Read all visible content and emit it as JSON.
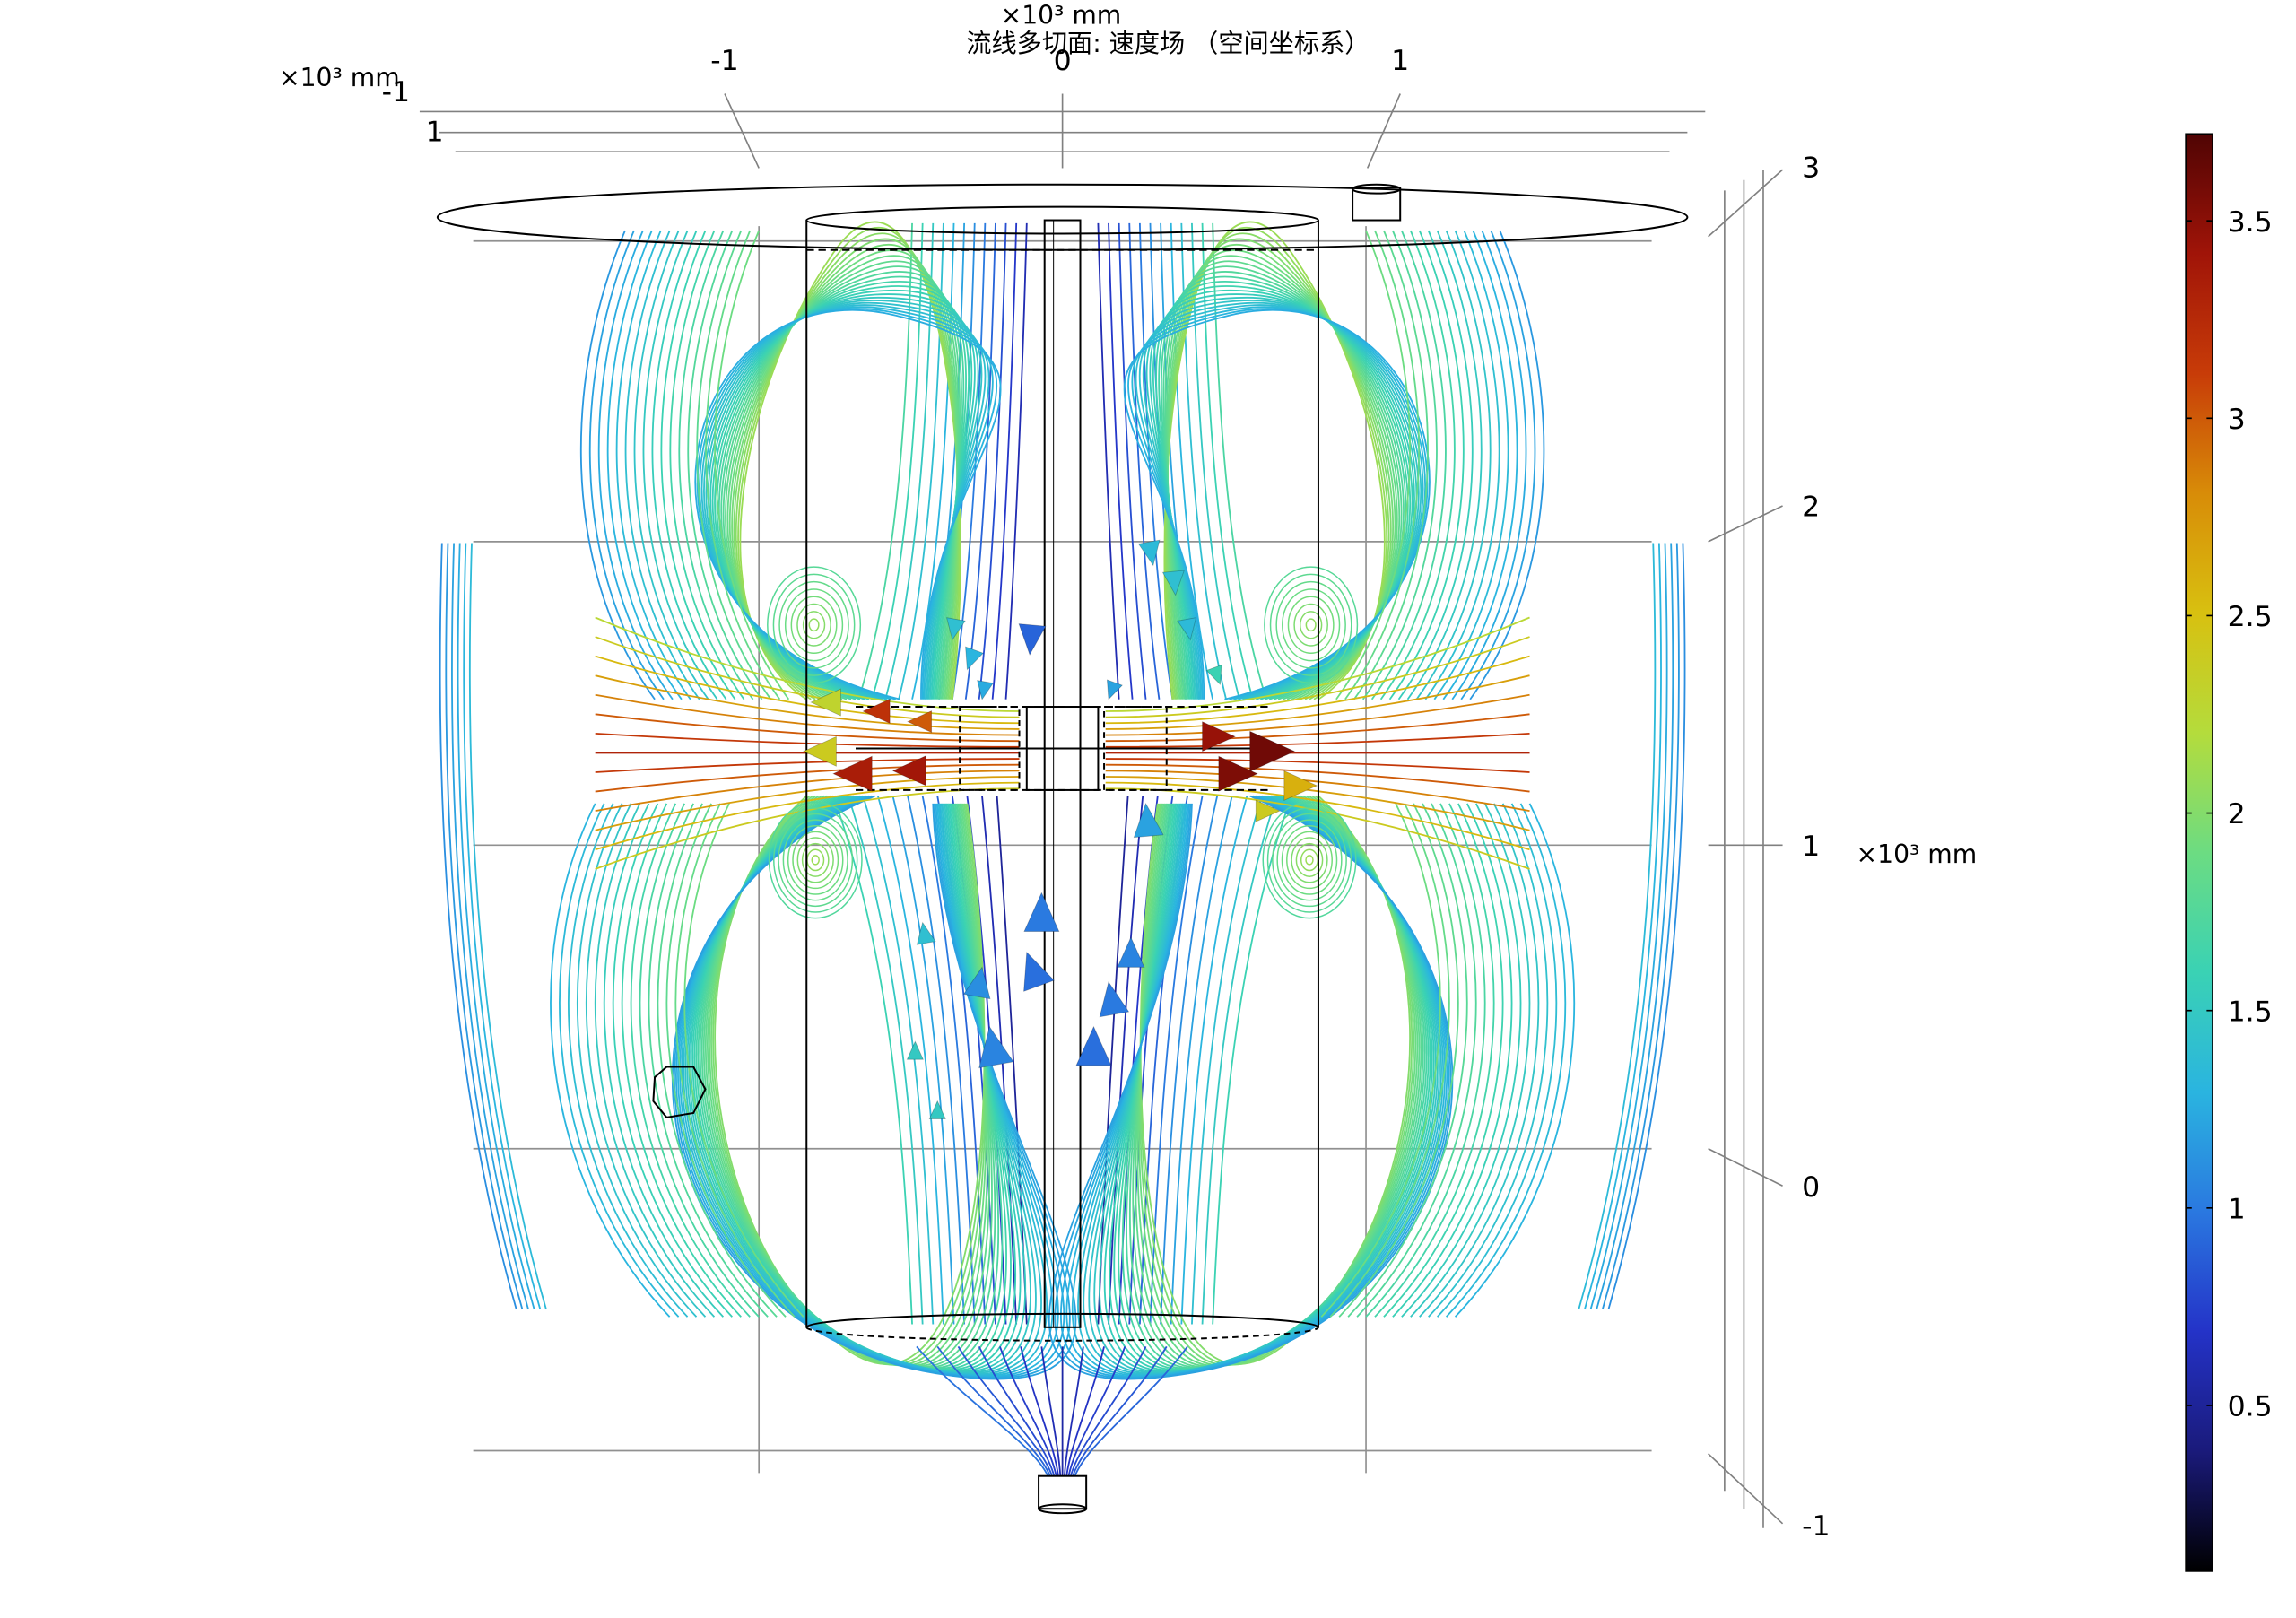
{
  "chart_data": {
    "type": "streamline",
    "title": "流线多切面: 速度场 （空间坐标系）",
    "top_axis": {
      "exponent_label": "×10³ mm",
      "ticks": [
        -1,
        0,
        1
      ]
    },
    "left_axis": {
      "exponent_label": "×10³ mm",
      "ticks": [
        -1,
        1
      ]
    },
    "right_axis": {
      "exponent_label": "×10³ mm",
      "ticks": [
        3,
        2,
        1,
        0,
        -1
      ]
    },
    "colorbar": {
      "min": 0.08,
      "max": 3.72,
      "ticks": [
        3.5,
        3,
        2.5,
        2,
        1.5,
        1,
        0.5
      ],
      "colors": [
        "#000000",
        "#1a1a7a",
        "#2433c8",
        "#2a78e0",
        "#2ab4e0",
        "#3ad2b4",
        "#6cdc82",
        "#b4dc3c",
        "#d8c010",
        "#d88c08",
        "#c83c08",
        "#a01408",
        "#500404"
      ]
    }
  }
}
